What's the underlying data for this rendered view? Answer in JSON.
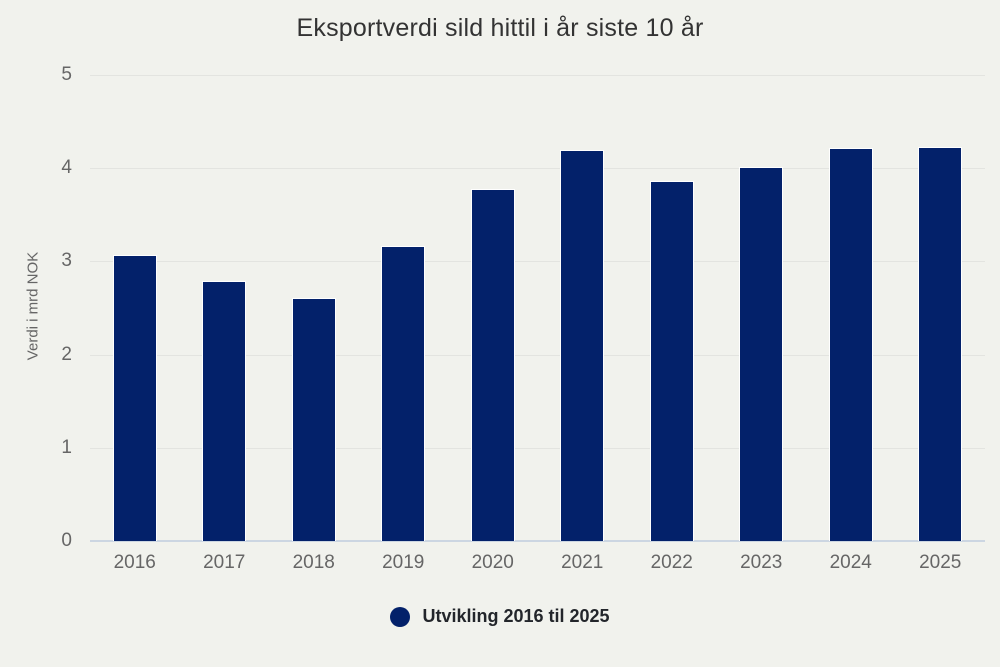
{
  "title": "Eksportverdi sild hittil i år siste 10 år",
  "colors": {
    "background": "#f1f2ed",
    "bar": "#03216a",
    "grid": "#e3e4e0",
    "axis_line": "#ccd6e2",
    "title_text": "#333333",
    "tick_text": "#666666",
    "legend_text": "#23262b"
  },
  "legend": {
    "marker": "circle-icon",
    "label": "Utvikling 2016 til 2025"
  },
  "chart_data": {
    "type": "bar",
    "title": "Eksportverdi sild hittil i år siste 10 år",
    "categories": [
      "2016",
      "2017",
      "2018",
      "2019",
      "2020",
      "2021",
      "2022",
      "2023",
      "2024",
      "2025"
    ],
    "values": [
      3.07,
      2.79,
      2.61,
      3.17,
      3.78,
      4.2,
      3.86,
      4.01,
      4.22,
      4.23
    ],
    "series_name": "Utvikling 2016 til 2025",
    "xlabel": "",
    "ylabel": "Verdi i mrd NOK",
    "ylim": [
      0,
      5
    ],
    "yticks": [
      0,
      1,
      2,
      3,
      4,
      5
    ],
    "grid": true,
    "legend_position": "bottom"
  }
}
